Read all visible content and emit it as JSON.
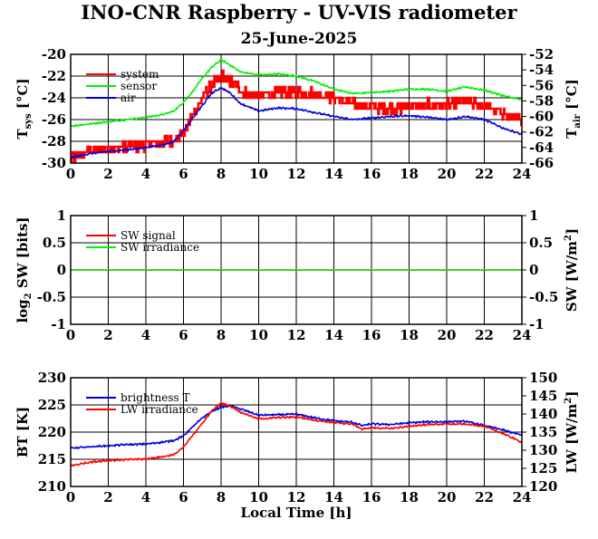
{
  "title": "INO-CNR Raspberry - UV-VIS radiometer",
  "subtitle": "25-June-2025",
  "colors": {
    "red": "#ff0000",
    "green": "#00ee00",
    "blue": "#0000dd",
    "grid": "#000000"
  },
  "chart_data": [
    {
      "type": "line",
      "panel": "temperatures",
      "ylabel_left": {
        "main": "T",
        "sub": "sys",
        "rest": " [°C]"
      },
      "ylabel_right": {
        "main": "T",
        "sub": "air",
        "rest": " [°C]"
      },
      "xlim": [
        0,
        24
      ],
      "ylim_left": [
        -30,
        -20
      ],
      "ylim_right": [
        -66,
        -52
      ],
      "x_ticks": [
        "0",
        "2",
        "4",
        "6",
        "8",
        "10",
        "12",
        "14",
        "16",
        "18",
        "20",
        "22",
        "24"
      ],
      "y_ticks_left": [
        "-30",
        "-28",
        "-26",
        "-24",
        "-22",
        "-20"
      ],
      "y_ticks_right": [
        "-66",
        "-64",
        "-62",
        "-60",
        "-58",
        "-56",
        "-54",
        "-52"
      ],
      "grid": true,
      "legend_position": "top-left",
      "series": [
        {
          "name": "system",
          "color": "red",
          "axis": "left",
          "x": [
            0,
            0.5,
            1,
            2,
            3,
            4,
            5,
            5.5,
            5.8,
            6,
            6.5,
            7,
            7.5,
            8,
            8.5,
            9,
            9.5,
            10,
            11,
            12,
            13,
            14,
            15,
            16,
            17,
            18,
            19,
            20,
            21,
            22,
            23,
            24
          ],
          "y": [
            -29.7,
            -29.3,
            -28.9,
            -28.7,
            -28.5,
            -28.3,
            -28.1,
            -27.8,
            -27.5,
            -27.2,
            -25.5,
            -24,
            -22.8,
            -22,
            -22.5,
            -23.2,
            -23.8,
            -23.8,
            -23.5,
            -23.5,
            -23.6,
            -24,
            -24.6,
            -24.8,
            -25,
            -24.8,
            -24.6,
            -24.7,
            -24.2,
            -24.8,
            -25.4,
            -26.2
          ]
        },
        {
          "name": "sensor",
          "color": "green",
          "axis": "left",
          "x": [
            0,
            1,
            2,
            3,
            4,
            5,
            5.5,
            6,
            6.5,
            7,
            7.5,
            8,
            8.5,
            9,
            10,
            11,
            12,
            13,
            14,
            15,
            16,
            17,
            18,
            19,
            20,
            21,
            22,
            23,
            24
          ],
          "y": [
            -26.6,
            -26.4,
            -26.2,
            -26,
            -25.8,
            -25.5,
            -25.2,
            -24.4,
            -23.4,
            -22.2,
            -21.2,
            -20.5,
            -21.0,
            -21.6,
            -21.9,
            -21.8,
            -22,
            -22.5,
            -23.2,
            -23.6,
            -23.5,
            -23.4,
            -23.2,
            -23.2,
            -23.4,
            -23.0,
            -23.3,
            -23.8,
            -24.2
          ]
        },
        {
          "name": "air",
          "color": "blue",
          "axis": "right",
          "x": [
            0,
            1,
            2,
            3,
            4,
            5,
            5.5,
            6,
            6.5,
            7,
            7.5,
            8,
            8.5,
            9,
            10,
            11,
            12,
            13,
            14,
            15,
            16,
            17,
            18,
            19,
            20,
            21,
            22,
            23,
            24
          ],
          "y": [
            -65.3,
            -64.8,
            -64.5,
            -64.3,
            -64.0,
            -63.6,
            -63.2,
            -61.8,
            -60.2,
            -58.6,
            -57.0,
            -56.3,
            -57.0,
            -58.3,
            -59.3,
            -58.9,
            -59.0,
            -59.5,
            -60.0,
            -60.4,
            -60.2,
            -60.0,
            -59.9,
            -60.1,
            -60.4,
            -60.0,
            -60.4,
            -61.5,
            -62.3
          ]
        }
      ]
    },
    {
      "type": "line",
      "panel": "shortwave",
      "ylabel_left": {
        "main": "log",
        "sub": "2",
        "rest": " SW [bits]"
      },
      "ylabel_right": {
        "main": "SW [W/m",
        "sup": "2",
        "rest": "]"
      },
      "xlim": [
        0,
        24
      ],
      "ylim_left": [
        -1,
        1
      ],
      "ylim_right": [
        -1,
        1
      ],
      "x_ticks": [
        "0",
        "2",
        "4",
        "6",
        "8",
        "10",
        "12",
        "14",
        "16",
        "18",
        "20",
        "22",
        "24"
      ],
      "y_ticks_left": [
        "-1",
        "-0.5",
        "0",
        "0.5",
        "1"
      ],
      "y_ticks_right": [
        "-1",
        "-0.5",
        "0",
        "0.5",
        "1"
      ],
      "grid": true,
      "legend_position": "top-left",
      "series": [
        {
          "name": "SW signal",
          "color": "red",
          "axis": "left",
          "x": [
            0,
            24
          ],
          "y": [
            0,
            0
          ]
        },
        {
          "name": "SW irradiance",
          "color": "green",
          "axis": "right",
          "x": [
            0,
            24
          ],
          "y": [
            0,
            0
          ]
        }
      ]
    },
    {
      "type": "line",
      "panel": "longwave",
      "ylabel_left": {
        "main": "BT [K]"
      },
      "ylabel_right": {
        "main": "LW [W/m",
        "sup": "2",
        "rest": "]"
      },
      "xlabel": "Local Time [h]",
      "xlim": [
        0,
        24
      ],
      "ylim_left": [
        210,
        230
      ],
      "ylim_right": [
        120,
        150
      ],
      "x_ticks": [
        "0",
        "2",
        "4",
        "6",
        "8",
        "10",
        "12",
        "14",
        "16",
        "18",
        "20",
        "22",
        "24"
      ],
      "y_ticks_left": [
        "210",
        "215",
        "220",
        "225",
        "230"
      ],
      "y_ticks_right": [
        "120",
        "125",
        "130",
        "135",
        "140",
        "145",
        "150"
      ],
      "grid": true,
      "legend_position": "top-left",
      "series": [
        {
          "name": "brightness T",
          "color": "blue",
          "axis": "left",
          "x": [
            0,
            1,
            2,
            3,
            4,
            5,
            5.5,
            6,
            6.5,
            7,
            7.5,
            8,
            8.5,
            9,
            10,
            11,
            12,
            13,
            14,
            15,
            15.5,
            16,
            17,
            18,
            19,
            20,
            21,
            22,
            23,
            24
          ],
          "y": [
            217.0,
            217.3,
            217.5,
            217.7,
            217.8,
            218.2,
            218.5,
            219.3,
            221.0,
            222.6,
            223.8,
            224.6,
            224.8,
            224.3,
            223.1,
            223.2,
            223.3,
            222.6,
            222.1,
            221.8,
            221.2,
            221.5,
            221.4,
            221.7,
            221.9,
            221.9,
            222.0,
            221.2,
            220.4,
            219.4
          ]
        },
        {
          "name": "LW irradiance",
          "color": "red",
          "axis": "right",
          "x": [
            0,
            1,
            2,
            3,
            4,
            5,
            5.5,
            6,
            6.5,
            7,
            7.5,
            8,
            8.5,
            9,
            10,
            11,
            12,
            13,
            14,
            15,
            15.5,
            16,
            17,
            18,
            19,
            20,
            21,
            22,
            23,
            24
          ],
          "y": [
            125.7,
            126.7,
            127.2,
            127.4,
            127.6,
            128.3,
            128.8,
            130.8,
            134.2,
            137.4,
            140.8,
            143.0,
            142.2,
            140.6,
            138.6,
            139.0,
            139.2,
            138.3,
            137.6,
            137.2,
            135.8,
            136.2,
            136.0,
            136.6,
            137.1,
            137.2,
            137.2,
            136.6,
            134.6,
            132.2
          ]
        }
      ]
    }
  ]
}
